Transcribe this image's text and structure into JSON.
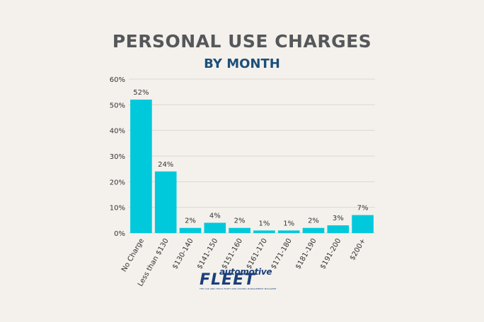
{
  "chart_data": {
    "type": "bar",
    "title": "PERSONAL USE CHARGES",
    "subtitle": "BY MONTH",
    "categories": [
      "No Charge",
      "Less than $130",
      "$130-140",
      "$141-150",
      "$151-160",
      "$161-170",
      "$171-180",
      "$181-190",
      "$191-200",
      "$200+"
    ],
    "values": [
      52,
      24,
      2,
      4,
      2,
      1,
      1,
      2,
      3,
      7
    ],
    "data_labels": [
      "52%",
      "24%",
      "2%",
      "4%",
      "2%",
      "1%",
      "1%",
      "2%",
      "3%",
      "7%"
    ],
    "yticks": [
      "0%",
      "10%",
      "20%",
      "30%",
      "40%",
      "50%",
      "60%"
    ],
    "ylim": [
      0,
      60
    ],
    "xlabel": "",
    "ylabel": "",
    "grid": true,
    "bar_color": "#00c9dc"
  },
  "logo": {
    "top_text": "automotive",
    "main_text": "FLEET",
    "tagline": "THE CAR AND TRUCK FLEET AND LEASING MANAGEMENT MAGAZINE"
  }
}
